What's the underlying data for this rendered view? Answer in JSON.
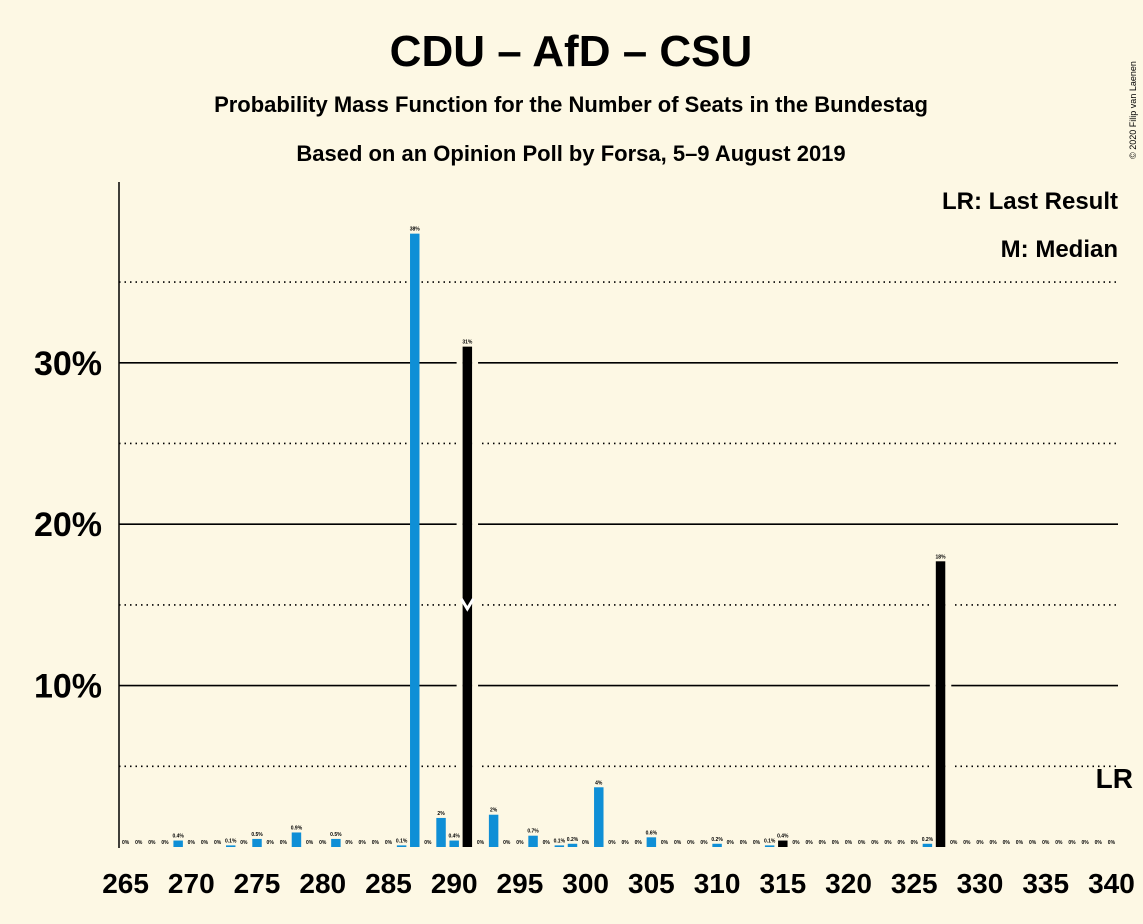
{
  "chart_data": {
    "type": "bar",
    "title": "CDU – AfD – CSU",
    "subtitle": "Probability Mass Function for the Number of Seats in the Bundestag",
    "subtitle2": "Based on an Opinion Poll by Forsa, 5–9 August 2019",
    "copyright": "© 2020 Filip van Laenen",
    "legend": {
      "lr": "LR: Last Result",
      "median": "M: Median",
      "placement": "top-right"
    },
    "lr_marker": "LR",
    "x_ticks": [
      265,
      270,
      275,
      280,
      285,
      290,
      295,
      300,
      305,
      310,
      315,
      320,
      325,
      330,
      335,
      340
    ],
    "y_ticks": [
      {
        "value": 10,
        "label": "10%"
      },
      {
        "value": 20,
        "label": "20%"
      },
      {
        "value": 30,
        "label": "30%"
      }
    ],
    "y_dotted": [
      5,
      15,
      25,
      35
    ],
    "ylim": [
      0,
      41.2
    ],
    "xlim": [
      264.5,
      340.5
    ],
    "median_seat": 291,
    "last_result_seat": 340,
    "colors": {
      "blue": "#0f8fd6",
      "black": "#000000",
      "background": "#fdf8e4"
    },
    "values": [
      {
        "seat": 265,
        "value": 0,
        "label": "0%"
      },
      {
        "seat": 266,
        "value": 0,
        "label": "0%"
      },
      {
        "seat": 267,
        "value": 0,
        "label": "0%"
      },
      {
        "seat": 268,
        "value": 0,
        "label": "0%"
      },
      {
        "seat": 269,
        "value": 0.4,
        "label": "0.4%"
      },
      {
        "seat": 270,
        "value": 0,
        "label": "0%"
      },
      {
        "seat": 271,
        "value": 0,
        "label": "0%"
      },
      {
        "seat": 272,
        "value": 0,
        "label": "0%"
      },
      {
        "seat": 273,
        "value": 0.1,
        "label": "0.1%"
      },
      {
        "seat": 274,
        "value": 0,
        "label": "0%"
      },
      {
        "seat": 275,
        "value": 0.5,
        "label": "0.5%"
      },
      {
        "seat": 276,
        "value": 0,
        "label": "0%"
      },
      {
        "seat": 277,
        "value": 0,
        "label": "0%"
      },
      {
        "seat": 278,
        "value": 0.9,
        "label": "0.9%"
      },
      {
        "seat": 279,
        "value": 0,
        "label": "0%"
      },
      {
        "seat": 280,
        "value": 0,
        "label": "0%"
      },
      {
        "seat": 281,
        "value": 0.5,
        "label": "0.5%"
      },
      {
        "seat": 282,
        "value": 0,
        "label": "0%"
      },
      {
        "seat": 283,
        "value": 0,
        "label": "0%"
      },
      {
        "seat": 284,
        "value": 0,
        "label": "0%"
      },
      {
        "seat": 285,
        "value": 0,
        "label": "0%"
      },
      {
        "seat": 286,
        "value": 0.1,
        "label": "0.1%"
      },
      {
        "seat": 287,
        "value": 38,
        "label": "38%"
      },
      {
        "seat": 288,
        "value": 0,
        "label": "0%"
      },
      {
        "seat": 289,
        "value": 1.8,
        "label": "2%"
      },
      {
        "seat": 290,
        "value": 0.4,
        "label": "0.4%"
      },
      {
        "seat": 291,
        "value": 31,
        "label": "31%"
      },
      {
        "seat": 292,
        "value": 0,
        "label": "0%"
      },
      {
        "seat": 293,
        "value": 2,
        "label": "2%"
      },
      {
        "seat": 294,
        "value": 0,
        "label": "0%"
      },
      {
        "seat": 295,
        "value": 0,
        "label": "0%"
      },
      {
        "seat": 296,
        "value": 0.7,
        "label": "0.7%"
      },
      {
        "seat": 297,
        "value": 0,
        "label": "0%"
      },
      {
        "seat": 298,
        "value": 0.1,
        "label": "0.1%"
      },
      {
        "seat": 299,
        "value": 0.2,
        "label": "0.2%"
      },
      {
        "seat": 300,
        "value": 0,
        "label": "0%"
      },
      {
        "seat": 301,
        "value": 3.7,
        "label": "4%"
      },
      {
        "seat": 302,
        "value": 0,
        "label": "0%"
      },
      {
        "seat": 303,
        "value": 0,
        "label": "0%"
      },
      {
        "seat": 304,
        "value": 0,
        "label": "0%"
      },
      {
        "seat": 305,
        "value": 0.6,
        "label": "0.6%"
      },
      {
        "seat": 306,
        "value": 0,
        "label": "0%"
      },
      {
        "seat": 307,
        "value": 0,
        "label": "0%"
      },
      {
        "seat": 308,
        "value": 0,
        "label": "0%"
      },
      {
        "seat": 309,
        "value": 0,
        "label": "0%"
      },
      {
        "seat": 310,
        "value": 0.2,
        "label": "0.2%"
      },
      {
        "seat": 311,
        "value": 0,
        "label": "0%"
      },
      {
        "seat": 312,
        "value": 0,
        "label": "0%"
      },
      {
        "seat": 313,
        "value": 0,
        "label": "0%"
      },
      {
        "seat": 314,
        "value": 0.1,
        "label": "0.1%"
      },
      {
        "seat": 315,
        "value": 0.4,
        "label": "0.4%"
      },
      {
        "seat": 316,
        "value": 0,
        "label": "0%"
      },
      {
        "seat": 317,
        "value": 0,
        "label": "0%"
      },
      {
        "seat": 318,
        "value": 0,
        "label": "0%"
      },
      {
        "seat": 319,
        "value": 0,
        "label": "0%"
      },
      {
        "seat": 320,
        "value": 0,
        "label": "0%"
      },
      {
        "seat": 321,
        "value": 0,
        "label": "0%"
      },
      {
        "seat": 322,
        "value": 0,
        "label": "0%"
      },
      {
        "seat": 323,
        "value": 0,
        "label": "0%"
      },
      {
        "seat": 324,
        "value": 0,
        "label": "0%"
      },
      {
        "seat": 325,
        "value": 0,
        "label": "0%"
      },
      {
        "seat": 326,
        "value": 0.2,
        "label": "0.2%"
      },
      {
        "seat": 327,
        "value": 17.7,
        "label": "18%"
      },
      {
        "seat": 328,
        "value": 0,
        "label": "0%"
      },
      {
        "seat": 329,
        "value": 0,
        "label": "0%"
      },
      {
        "seat": 330,
        "value": 0,
        "label": "0%"
      },
      {
        "seat": 331,
        "value": 0,
        "label": "0%"
      },
      {
        "seat": 332,
        "value": 0,
        "label": "0%"
      },
      {
        "seat": 333,
        "value": 0,
        "label": "0%"
      },
      {
        "seat": 334,
        "value": 0,
        "label": "0%"
      },
      {
        "seat": 335,
        "value": 0,
        "label": "0%"
      },
      {
        "seat": 336,
        "value": 0,
        "label": "0%"
      },
      {
        "seat": 337,
        "value": 0,
        "label": "0%"
      },
      {
        "seat": 338,
        "value": 0,
        "label": "0%"
      },
      {
        "seat": 339,
        "value": 0,
        "label": "0%"
      },
      {
        "seat": 340,
        "value": 0,
        "label": "0%"
      }
    ],
    "black_seats": [
      291,
      315,
      327
    ]
  }
}
